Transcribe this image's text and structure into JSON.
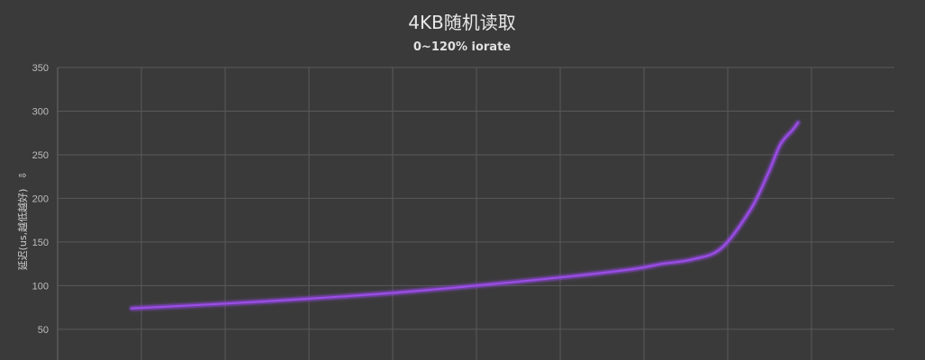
{
  "chart_data": {
    "type": "line",
    "title": "4KB随机读取",
    "subtitle": "0~120% iorate",
    "ylabel": "延迟(us,越低越好)",
    "ylabel_arrow": "⇩",
    "ylim": [
      0,
      350
    ],
    "yticks": [
      50,
      100,
      150,
      200,
      250,
      300,
      350
    ],
    "grid": true,
    "series": [
      {
        "color": "#9b4ee6",
        "glow": "#7a3fc0",
        "x": [
          0,
          15,
          30,
          45,
          60,
          75,
          85,
          90,
          95,
          100,
          105,
          108,
          110,
          112,
          113
        ],
        "y": [
          74,
          79,
          85,
          92,
          101,
          111,
          119,
          125,
          130,
          143,
          188,
          230,
          262,
          278,
          287
        ]
      }
    ]
  }
}
